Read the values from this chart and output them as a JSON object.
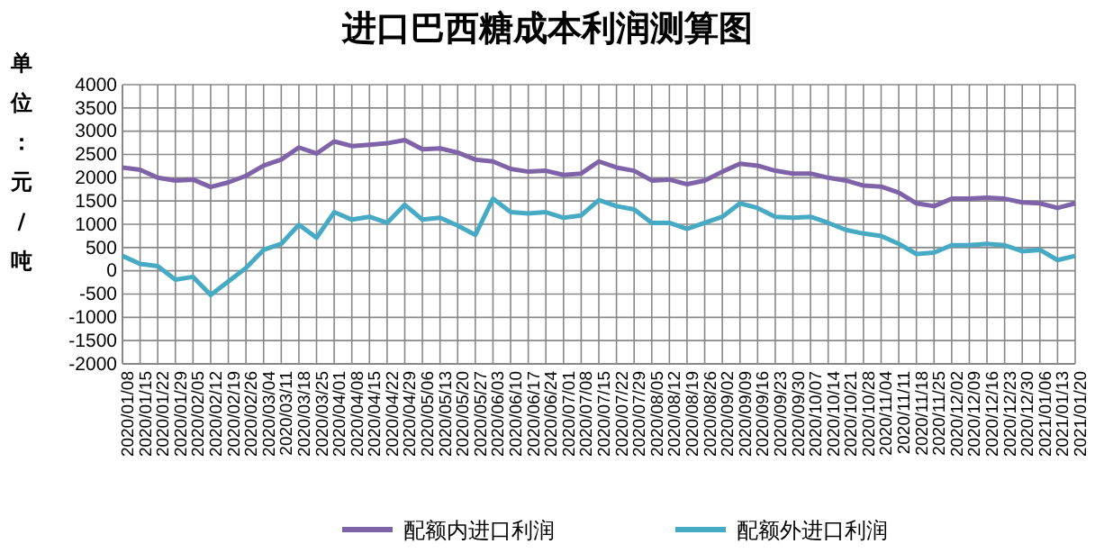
{
  "chart_data": {
    "type": "line",
    "title": "进口巴西糖成本利润测算图",
    "ylabel": "单位：元/吨",
    "categories": [
      "2020/01/08",
      "2020/01/15",
      "2020/01/22",
      "2020/01/29",
      "2020/02/05",
      "2020/02/12",
      "2020/02/19",
      "2020/02/26",
      "2020/03/04",
      "2020/03/11",
      "2020/03/18",
      "2020/03/25",
      "2020/04/01",
      "2020/04/08",
      "2020/04/15",
      "2020/04/22",
      "2020/04/29",
      "2020/05/06",
      "2020/05/13",
      "2020/05/20",
      "2020/05/27",
      "2020/06/03",
      "2020/06/10",
      "2020/06/17",
      "2020/06/24",
      "2020/07/01",
      "2020/07/08",
      "2020/07/15",
      "2020/07/22",
      "2020/07/29",
      "2020/08/05",
      "2020/08/12",
      "2020/08/19",
      "2020/08/26",
      "2020/09/02",
      "2020/09/09",
      "2020/09/16",
      "2020/09/23",
      "2020/09/30",
      "2020/10/07",
      "2020/10/14",
      "2020/10/21",
      "2020/10/28",
      "2020/11/04",
      "2020/11/11",
      "2020/11/18",
      "2020/11/25",
      "2020/12/02",
      "2020/12/09",
      "2020/12/16",
      "2020/12/23",
      "2020/12/30",
      "2021/01/06",
      "2021/01/13",
      "2021/01/20"
    ],
    "series": [
      {
        "name": "配额内进口利润",
        "color": "#7f63a8",
        "values": [
          2220,
          2170,
          2000,
          1940,
          1960,
          1800,
          1900,
          2040,
          2260,
          2390,
          2650,
          2520,
          2780,
          2680,
          2710,
          2740,
          2810,
          2610,
          2630,
          2540,
          2390,
          2350,
          2190,
          2130,
          2150,
          2060,
          2090,
          2350,
          2220,
          2150,
          1940,
          1960,
          1860,
          1940,
          2130,
          2300,
          2260,
          2150,
          2090,
          2090,
          2000,
          1940,
          1830,
          1810,
          1680,
          1450,
          1390,
          1550,
          1550,
          1570,
          1550,
          1470,
          1450,
          1350,
          1450
        ]
      },
      {
        "name": "配额外进口利润",
        "color": "#46aac4",
        "values": [
          320,
          150,
          100,
          -190,
          -130,
          -520,
          -230,
          60,
          450,
          580,
          990,
          710,
          1260,
          1100,
          1160,
          1030,
          1420,
          1100,
          1140,
          970,
          770,
          1550,
          1260,
          1230,
          1260,
          1140,
          1190,
          1520,
          1390,
          1320,
          1030,
          1030,
          900,
          1030,
          1160,
          1450,
          1350,
          1160,
          1140,
          1160,
          1030,
          880,
          800,
          750,
          580,
          360,
          390,
          550,
          550,
          580,
          550,
          420,
          450,
          230,
          320
        ]
      }
    ],
    "ylim": [
      -2000,
      4000
    ],
    "yticks": [
      -2000,
      -1500,
      -1000,
      -500,
      0,
      500,
      1000,
      1500,
      2000,
      2500,
      3000,
      3500,
      4000
    ],
    "grid": true,
    "legend": "bottom",
    "line_style": "solid",
    "marker": "none"
  }
}
